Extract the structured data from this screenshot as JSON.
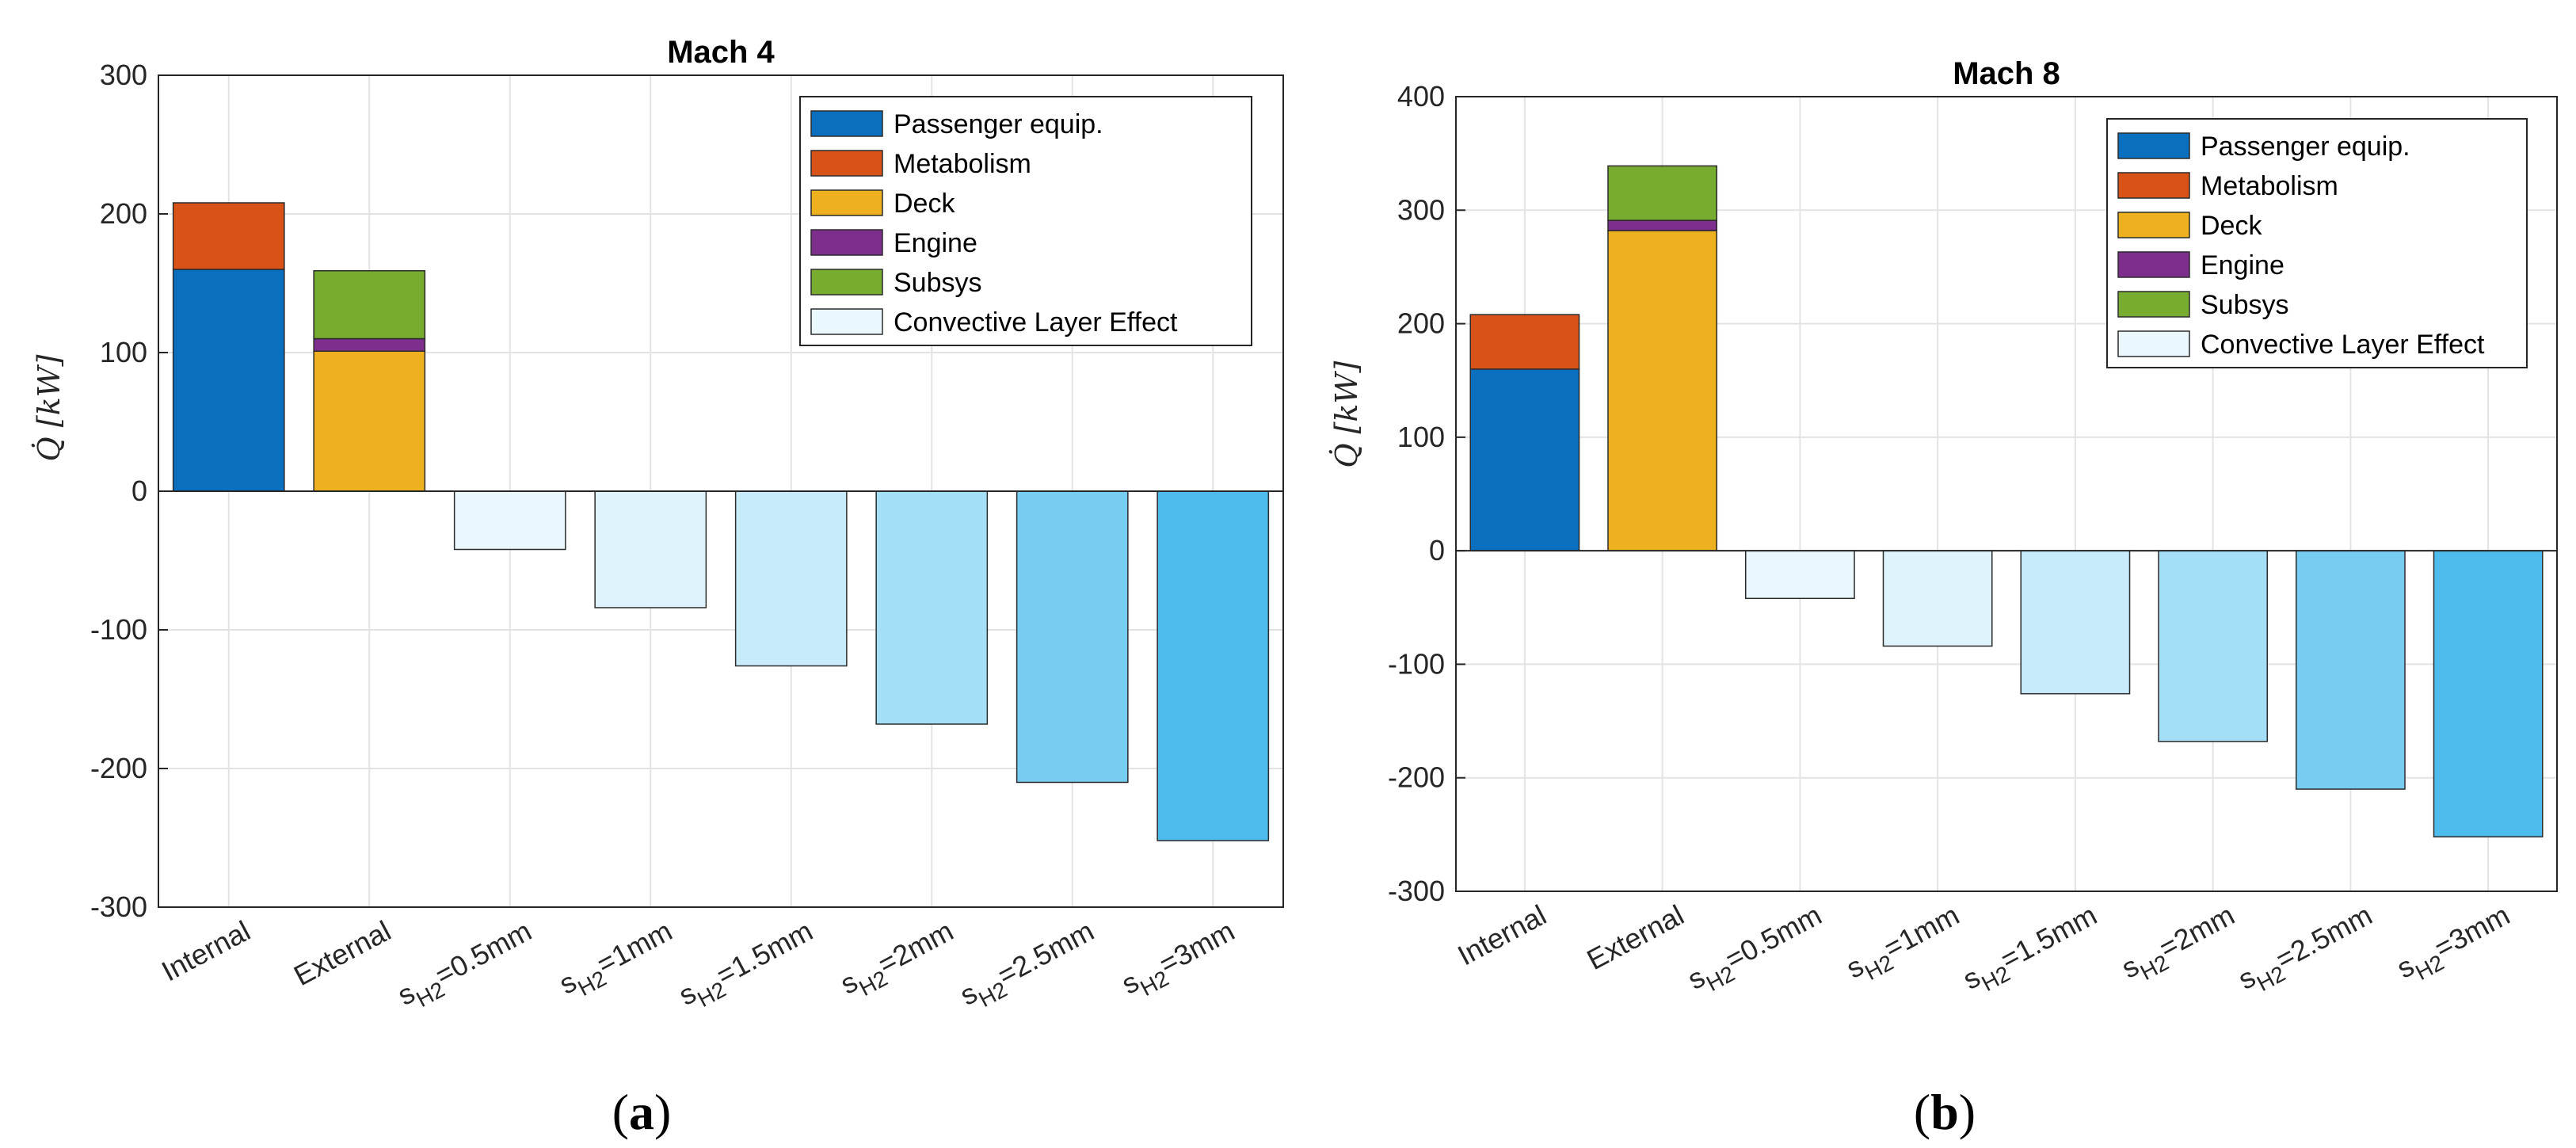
{
  "chart_data": [
    {
      "type": "bar",
      "stacked": true,
      "title": "Mach 4",
      "caption": "a",
      "ylabel": "Q̇ [kW]",
      "ylim": [
        -300,
        300
      ],
      "yticks": [
        -300,
        -200,
        -100,
        0,
        100,
        200,
        300
      ],
      "categories": [
        "Internal",
        "External",
        "s_H2=0.5mm",
        "s_H2=1mm",
        "s_H2=1.5mm",
        "s_H2=2mm",
        "s_H2=2.5mm",
        "s_H2=3mm"
      ],
      "category_labels": [
        {
          "main": "Internal"
        },
        {
          "main": "External"
        },
        {
          "main": "s",
          "sub": "H2",
          "rest": "=0.5mm"
        },
        {
          "main": "s",
          "sub": "H2",
          "rest": "=1mm"
        },
        {
          "main": "s",
          "sub": "H2",
          "rest": "=1.5mm"
        },
        {
          "main": "s",
          "sub": "H2",
          "rest": "=2mm"
        },
        {
          "main": "s",
          "sub": "H2",
          "rest": "=2.5mm"
        },
        {
          "main": "s",
          "sub": "H2",
          "rest": "=3mm"
        }
      ],
      "series": [
        {
          "name": "Passenger equip.",
          "color": "#0b6fbf",
          "values": [
            160,
            0,
            0,
            0,
            0,
            0,
            0,
            0
          ]
        },
        {
          "name": " Metabolism",
          "color": "#d95319",
          "values": [
            48,
            0,
            0,
            0,
            0,
            0,
            0,
            0
          ]
        },
        {
          "name": "Deck",
          "color": "#edb120",
          "values": [
            0,
            101,
            0,
            0,
            0,
            0,
            0,
            0
          ]
        },
        {
          "name": "Engine",
          "color": "#7e2f8e",
          "values": [
            0,
            9,
            0,
            0,
            0,
            0,
            0,
            0
          ]
        },
        {
          "name": "Subsys",
          "color": "#77ac30",
          "values": [
            0,
            49,
            0,
            0,
            0,
            0,
            0,
            0
          ]
        },
        {
          "name": "Convective Layer Effect",
          "color": "#eaf7fd",
          "values": [
            0,
            0,
            -42,
            -84,
            -126,
            -168,
            -210,
            -252
          ],
          "bar_colors": [
            "#eaf7fd",
            "#dff3fc",
            "#c7ebfa",
            "#a5def7",
            "#76ccf1",
            "#4dbbeb"
          ]
        }
      ],
      "legend_position": "top-right",
      "grid": true
    },
    {
      "type": "bar",
      "stacked": true,
      "title": "Mach 8",
      "caption": "b",
      "ylabel": "Q̇ [kW]",
      "ylim": [
        -300,
        400
      ],
      "yticks": [
        -300,
        -200,
        -100,
        0,
        100,
        200,
        300,
        400
      ],
      "categories": [
        "Internal",
        "External",
        "s_H2=0.5mm",
        "s_H2=1mm",
        "s_H2=1.5mm",
        "s_H2=2mm",
        "s_H2=2.5mm",
        "s_H2=3mm"
      ],
      "category_labels": [
        {
          "main": "Internal"
        },
        {
          "main": "External"
        },
        {
          "main": "s",
          "sub": "H2",
          "rest": "=0.5mm"
        },
        {
          "main": "s",
          "sub": "H2",
          "rest": "=1mm"
        },
        {
          "main": "s",
          "sub": "H2",
          "rest": "=1.5mm"
        },
        {
          "main": "s",
          "sub": "H2",
          "rest": "=2mm"
        },
        {
          "main": "s",
          "sub": "H2",
          "rest": "=2.5mm"
        },
        {
          "main": "s",
          "sub": "H2",
          "rest": "=3mm"
        }
      ],
      "series": [
        {
          "name": "Passenger equip.",
          "color": "#0b6fbf",
          "values": [
            160,
            0,
            0,
            0,
            0,
            0,
            0,
            0
          ]
        },
        {
          "name": " Metabolism",
          "color": "#d95319",
          "values": [
            48,
            0,
            0,
            0,
            0,
            0,
            0,
            0
          ]
        },
        {
          "name": "Deck",
          "color": "#edb120",
          "values": [
            0,
            282,
            0,
            0,
            0,
            0,
            0,
            0
          ]
        },
        {
          "name": "Engine",
          "color": "#7e2f8e",
          "values": [
            0,
            9,
            0,
            0,
            0,
            0,
            0,
            0
          ]
        },
        {
          "name": "Subsys",
          "color": "#77ac30",
          "values": [
            0,
            48,
            0,
            0,
            0,
            0,
            0,
            0
          ]
        },
        {
          "name": "Convective Layer Effect",
          "color": "#eaf7fd",
          "values": [
            0,
            0,
            -42,
            -84,
            -126,
            -168,
            -210,
            -252
          ],
          "bar_colors": [
            "#eaf7fd",
            "#dff3fc",
            "#c7ebfa",
            "#a5def7",
            "#76ccf1",
            "#4dbbeb"
          ]
        }
      ],
      "legend_position": "top-right",
      "grid": true
    }
  ]
}
